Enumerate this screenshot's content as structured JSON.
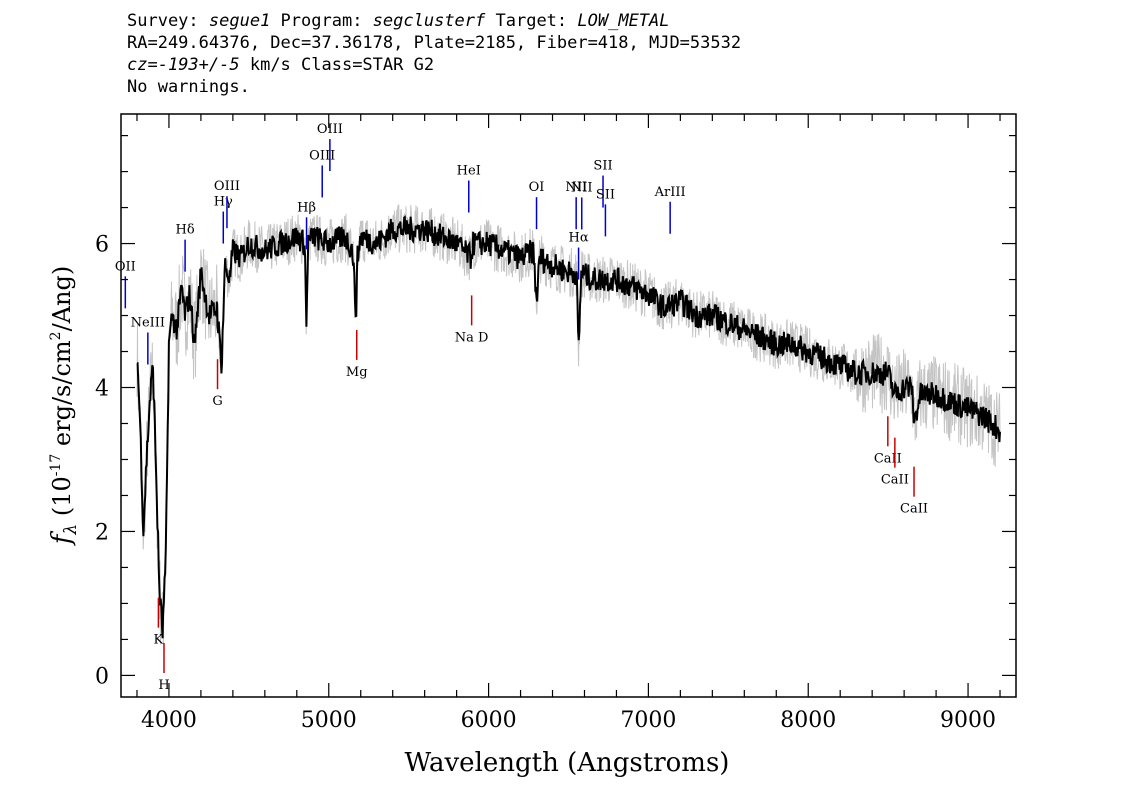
{
  "header": {
    "line1": {
      "survey_label": "Survey: ",
      "survey": "segue1",
      "program_label": " Program: ",
      "program": "segclusterf",
      "target_label": " Target: ",
      "target": "LOW_METAL"
    },
    "line2": "RA=249.64376, Dec=37.36178, Plate=2185, Fiber=418, MJD=53532",
    "line3": {
      "cz_label": "cz=",
      "cz": "-193+/-5",
      "rest": " km/s Class=STAR G2"
    },
    "line4": "No warnings."
  },
  "chart_data": {
    "type": "line",
    "xlabel": "Wavelength (Angstroms)",
    "ylabel_parts": {
      "f": "f",
      "sub": "λ",
      "open": " (10",
      "exp1": "-17",
      "mid": " erg/s/cm",
      "exp2": "2",
      "close": "/Ang)"
    },
    "xlim": [
      3700,
      9300
    ],
    "ylim": [
      -0.3,
      7.8
    ],
    "xticks": [
      4000,
      5000,
      6000,
      7000,
      8000,
      9000
    ],
    "xtick_labels": [
      "4000",
      "5000",
      "6000",
      "7000",
      "8000",
      "9000"
    ],
    "yticks": [
      0,
      2,
      4,
      6
    ],
    "ytick_labels": [
      "0",
      "2",
      "4",
      "6"
    ],
    "series": [
      {
        "role": "flux",
        "color": "#000000",
        "x": [
          3800,
          3820,
          3840,
          3860,
          3880,
          3900,
          3920,
          3940,
          3960,
          3980,
          4000,
          4020,
          4050,
          4080,
          4100,
          4130,
          4160,
          4200,
          4250,
          4300,
          4330,
          4350,
          4380,
          4400,
          4450,
          4500,
          4600,
          4700,
          4800,
          4850,
          4860,
          4870,
          4900,
          5000,
          5100,
          5150,
          5170,
          5180,
          5200,
          5300,
          5400,
          5500,
          5600,
          5700,
          5800,
          5890,
          5900,
          6000,
          6100,
          6200,
          6280,
          6300,
          6320,
          6400,
          6500,
          6550,
          6563,
          6580,
          6650,
          6700,
          6800,
          6900,
          7000,
          7100,
          7200,
          7300,
          7400,
          7500,
          7600,
          7700,
          7800,
          7900,
          8000,
          8100,
          8200,
          8300,
          8400,
          8500,
          8540,
          8600,
          8650,
          8662,
          8700,
          8800,
          8900,
          9000,
          9100,
          9200
        ],
        "y": [
          4.5,
          3.5,
          2.0,
          3.0,
          3.8,
          4.3,
          2.8,
          1.2,
          0.6,
          1.6,
          4.6,
          5.0,
          4.8,
          5.4,
          5.0,
          5.3,
          4.6,
          5.6,
          5.0,
          5.1,
          4.3,
          5.7,
          5.5,
          5.9,
          5.8,
          6.0,
          5.9,
          6.0,
          6.1,
          6.0,
          4.8,
          6.0,
          6.1,
          6.0,
          6.1,
          5.9,
          5.0,
          5.8,
          6.1,
          6.0,
          6.2,
          6.2,
          6.2,
          6.1,
          6.0,
          5.8,
          6.0,
          6.0,
          5.9,
          5.8,
          5.9,
          5.2,
          5.8,
          5.7,
          5.6,
          5.6,
          4.5,
          5.6,
          5.5,
          5.5,
          5.5,
          5.4,
          5.3,
          5.1,
          5.2,
          5.0,
          5.0,
          4.9,
          4.8,
          4.7,
          4.6,
          4.6,
          4.5,
          4.4,
          4.3,
          4.2,
          4.2,
          4.2,
          3.9,
          4.0,
          4.0,
          3.5,
          3.9,
          3.9,
          3.8,
          3.7,
          3.6,
          3.4
        ]
      }
    ],
    "noise": {
      "color": "#c4c4c4",
      "band": 0.35
    },
    "emission_lines": [
      {
        "label": "OII",
        "wavelength": 3727
      },
      {
        "label": "NeIII",
        "wavelength": 3868
      },
      {
        "label": "Hδ",
        "wavelength": 4101
      },
      {
        "label": "Hγ",
        "wavelength": 4340
      },
      {
        "label": "OIII",
        "wavelength": 4363
      },
      {
        "label": "Hβ",
        "wavelength": 4861
      },
      {
        "label": "OIII",
        "wavelength": 4959
      },
      {
        "label": "OIII",
        "wavelength": 5007
      },
      {
        "label": "HeI",
        "wavelength": 5876
      },
      {
        "label": "OI",
        "wavelength": 6300
      },
      {
        "label": "NII",
        "wavelength": 6548
      },
      {
        "label": "Hα",
        "wavelength": 6563
      },
      {
        "label": "NII",
        "wavelength": 6583
      },
      {
        "label": "SII",
        "wavelength": 6716
      },
      {
        "label": "SII",
        "wavelength": 6731
      },
      {
        "label": "ArIII",
        "wavelength": 7136
      }
    ],
    "absorption_lines": [
      {
        "label": "K",
        "wavelength": 3934
      },
      {
        "label": "H",
        "wavelength": 3969
      },
      {
        "label": "G",
        "wavelength": 4304
      },
      {
        "label": "Mg",
        "wavelength": 5175
      },
      {
        "label": "Na D",
        "wavelength": 5894
      },
      {
        "label": "CaII",
        "wavelength": 8498
      },
      {
        "label": "CaII",
        "wavelength": 8542
      },
      {
        "label": "CaII",
        "wavelength": 8662
      }
    ],
    "line_colors": {
      "emission": "#0000cc",
      "absorption": "#cc0000"
    }
  }
}
